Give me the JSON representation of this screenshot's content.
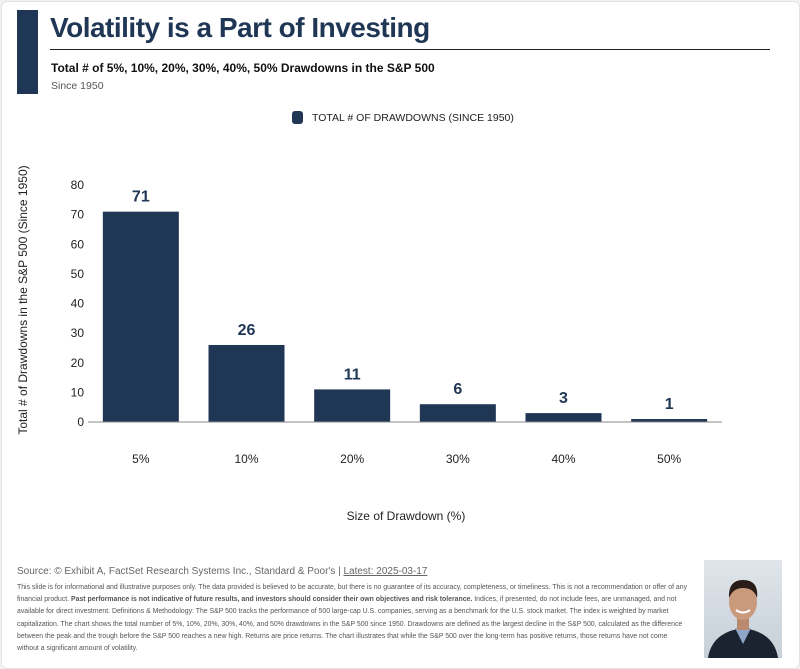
{
  "header": {
    "title": "Volatility is a Part of Investing",
    "subtitle": "Total # of 5%, 10%, 20%, 30%, 40%, 50% Drawdowns in the S&P 500",
    "since": "Since 1950"
  },
  "chart_data": {
    "type": "bar",
    "categories": [
      "5%",
      "10%",
      "20%",
      "30%",
      "40%",
      "50%"
    ],
    "values": [
      71,
      26,
      11,
      6,
      3,
      1
    ],
    "series": [
      {
        "name": "TOTAL # OF DRAWDOWNS (SINCE 1950)",
        "values": [
          71,
          26,
          11,
          6,
          3,
          1
        ]
      }
    ],
    "xlabel": "Size of Drawdown (%)",
    "ylabel": "Total # of Drawdowns in the S&P 500 (Since 1950)",
    "ylim": [
      0,
      80
    ],
    "yticks": [
      0,
      10,
      20,
      30,
      40,
      50,
      60,
      70,
      80
    ],
    "grid": false,
    "legend_position": "top-center",
    "bar_color": "#1f3655"
  },
  "footer": {
    "source": "Source: © Exhibit A, FactSet Research Systems Inc., Standard & Poor's | ",
    "latest": "Latest: 2025-03-17",
    "disclaimer_1": "This slide is for informational and illustrative purposes only. The data provided is believed to be accurate, but there is no guarantee of its accuracy, completeness, or timeliness. This is not a recommendation or offer of any financial product. ",
    "disclaimer_bold": "Past performance is not indicative of future results, and investors should consider their own objectives and risk tolerance.",
    "disclaimer_2": " Indices, if presented, do not include fees, are unmanaged, and not available for direct investment. Definitions & Methodology: The S&P 500 tracks the performance of 500 large-cap U.S. companies, serving as a benchmark for the U.S. stock market. The index is weighted by market capitalization. The chart shows the total number of 5%, 10%, 20%, 30%, 40%, and 50% drawdowns in the S&P 500 since 1950. Drawdowns are defined as the largest decline in the S&P 500, calculated as the difference between the peak and the trough before the S&P 500 reaches a new high. Returns are price returns. The chart illustrates that while the S&P 500 over the long-term has positive returns, those returns have not come without a significant amount of volatility."
  }
}
